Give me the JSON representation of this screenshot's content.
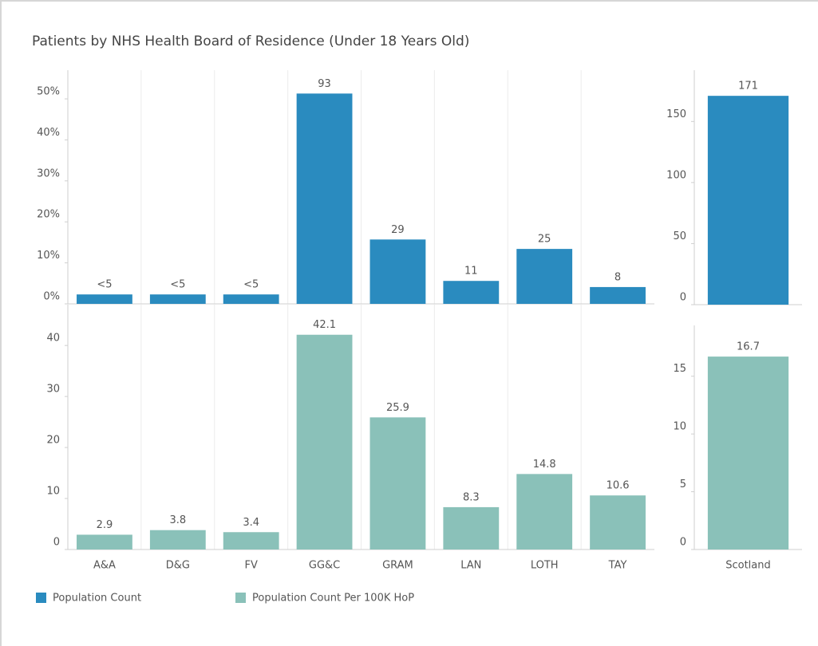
{
  "title": "Patients by NHS Health Board of Residence (Under 18 Years Old)",
  "chart_data": [
    {
      "type": "bar",
      "series": [
        {
          "name": "Population Count",
          "color": "#2a8bbf",
          "values": [
            2.3,
            2.3,
            2.3,
            51.3,
            15.7,
            5.6,
            13.4,
            4.1
          ],
          "bar_labels": [
            "<5",
            "<5",
            "<5",
            "93",
            "29",
            "11",
            "25",
            "8"
          ]
        }
      ],
      "ylim": [
        0,
        57
      ],
      "yticks": [
        {
          "value": 0,
          "label": "0%"
        },
        {
          "value": 10,
          "label": "10%"
        },
        {
          "value": 20,
          "label": "20%"
        },
        {
          "value": 30,
          "label": "30%"
        },
        {
          "value": 40,
          "label": "40%"
        },
        {
          "value": 50,
          "label": "50%"
        }
      ]
    },
    {
      "type": "bar",
      "series": [
        {
          "color": "#2a8bbf",
          "values": [
            171
          ]
        }
      ],
      "ylim": [
        0,
        192
      ],
      "yticks": [
        0,
        50,
        100,
        150
      ]
    },
    {
      "type": "bar",
      "categories": [
        "A&A",
        "D&G",
        "FV",
        "GG&C",
        "GRAM",
        "LAN",
        "LOTH",
        "TAY"
      ],
      "series": [
        {
          "name": "Population Count Per 100K HoP",
          "color": "#8ac1b9",
          "values": [
            2.9,
            3.8,
            3.4,
            42.1,
            25.9,
            8.3,
            14.8,
            10.6
          ]
        }
      ],
      "ylim": [
        0,
        48
      ],
      "yticks": [
        0,
        10,
        20,
        30,
        40
      ]
    },
    {
      "type": "bar",
      "categories": [
        "Scotland"
      ],
      "series": [
        {
          "color": "#8ac1b9",
          "values": [
            16.7
          ]
        }
      ],
      "ylim": [
        0,
        19.4
      ],
      "yticks": [
        0,
        5,
        10,
        15
      ]
    }
  ]
}
